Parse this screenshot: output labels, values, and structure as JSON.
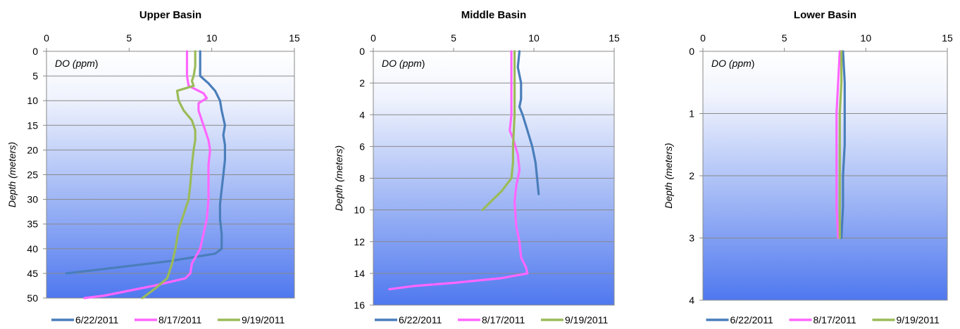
{
  "chart_data": [
    {
      "type": "line",
      "title": "Upper Basin",
      "xlabel": "DO",
      "xlabel_unit": "ppm",
      "ylabel": "Depth (meters)",
      "xlim": [
        0,
        15
      ],
      "ylim": [
        0,
        50
      ],
      "x_ticks": [
        0,
        5,
        10,
        15
      ],
      "y_ticks": [
        0,
        5,
        10,
        15,
        20,
        25,
        30,
        35,
        40,
        45,
        50
      ],
      "x_axis_position": "top",
      "y_inverted": true,
      "grid": "horizontal",
      "legend": "bottom",
      "series": [
        {
          "name": "6/22/2011",
          "color": "#4a7ebb",
          "points": [
            [
              9.3,
              0
            ],
            [
              9.3,
              3
            ],
            [
              9.3,
              5
            ],
            [
              9.8,
              6.5
            ],
            [
              10.2,
              8
            ],
            [
              10.5,
              10
            ],
            [
              10.6,
              12
            ],
            [
              10.8,
              15
            ],
            [
              10.7,
              17
            ],
            [
              10.8,
              19
            ],
            [
              10.8,
              22
            ],
            [
              10.7,
              25
            ],
            [
              10.6,
              28
            ],
            [
              10.5,
              31
            ],
            [
              10.5,
              34
            ],
            [
              10.6,
              37
            ],
            [
              10.6,
              40
            ],
            [
              10.2,
              41
            ],
            [
              7.5,
              42.5
            ],
            [
              5,
              43.5
            ],
            [
              2.5,
              44.5
            ],
            [
              1.2,
              45
            ]
          ]
        },
        {
          "name": "8/17/2011",
          "color": "#ff66ff",
          "points": [
            [
              8.5,
              0
            ],
            [
              8.5,
              3
            ],
            [
              8.5,
              5
            ],
            [
              8.6,
              7
            ],
            [
              9.5,
              8.5
            ],
            [
              9.7,
              9.5
            ],
            [
              9.2,
              10.5
            ],
            [
              9.2,
              12
            ],
            [
              9.5,
              15
            ],
            [
              9.8,
              18
            ],
            [
              9.9,
              20
            ],
            [
              9.8,
              23
            ],
            [
              9.8,
              27
            ],
            [
              9.8,
              30
            ],
            [
              9.7,
              34
            ],
            [
              9.5,
              37
            ],
            [
              9.3,
              40
            ],
            [
              8.8,
              43
            ],
            [
              8.7,
              45
            ],
            [
              8.4,
              46
            ],
            [
              6.5,
              47.5
            ],
            [
              5,
              48.5
            ],
            [
              3.5,
              49.5
            ],
            [
              2.3,
              50
            ]
          ]
        },
        {
          "name": "9/19/2011",
          "color": "#9bbb59",
          "points": [
            [
              9.0,
              0
            ],
            [
              9.0,
              3
            ],
            [
              8.9,
              5
            ],
            [
              8.8,
              6
            ],
            [
              8.9,
              7
            ],
            [
              8.4,
              7.5
            ],
            [
              7.9,
              8
            ],
            [
              8.0,
              10
            ],
            [
              8.3,
              12
            ],
            [
              8.8,
              14
            ],
            [
              9.0,
              16
            ],
            [
              9.0,
              18
            ],
            [
              8.9,
              20
            ],
            [
              8.8,
              23
            ],
            [
              8.7,
              27
            ],
            [
              8.6,
              30
            ],
            [
              8.3,
              33
            ],
            [
              8.0,
              36
            ],
            [
              7.8,
              40
            ],
            [
              7.6,
              43
            ],
            [
              7.4,
              45
            ],
            [
              7.3,
              46
            ],
            [
              6.6,
              48
            ],
            [
              6.0,
              49.5
            ],
            [
              5.8,
              50
            ]
          ]
        }
      ]
    },
    {
      "type": "line",
      "title": "Middle Basin",
      "xlabel": "DO",
      "xlabel_unit": "ppm",
      "ylabel": "Depth (meters)",
      "xlim": [
        0,
        15
      ],
      "ylim": [
        0,
        16
      ],
      "x_ticks": [
        0,
        5,
        10,
        15
      ],
      "y_ticks": [
        0,
        2,
        4,
        6,
        8,
        10,
        12,
        14,
        16
      ],
      "x_axis_position": "top",
      "y_inverted": true,
      "grid": "horizontal",
      "legend": "bottom",
      "series": [
        {
          "name": "6/22/2011",
          "color": "#4a7ebb",
          "points": [
            [
              9.1,
              0
            ],
            [
              9.0,
              1
            ],
            [
              9.2,
              2
            ],
            [
              9.2,
              3
            ],
            [
              9.1,
              3.5
            ],
            [
              9.3,
              4
            ],
            [
              9.6,
              5
            ],
            [
              9.9,
              6
            ],
            [
              10.1,
              7
            ],
            [
              10.2,
              8
            ],
            [
              10.3,
              9
            ]
          ]
        },
        {
          "name": "8/17/2011",
          "color": "#ff66ff",
          "points": [
            [
              8.6,
              0
            ],
            [
              8.6,
              2
            ],
            [
              8.6,
              4
            ],
            [
              8.5,
              5
            ],
            [
              8.7,
              5.5
            ],
            [
              9.0,
              6.5
            ],
            [
              9.1,
              7.5
            ],
            [
              8.9,
              8.5
            ],
            [
              8.8,
              9.5
            ],
            [
              8.9,
              11
            ],
            [
              9.1,
              12
            ],
            [
              9.2,
              13
            ],
            [
              9.5,
              13.6
            ],
            [
              9.6,
              14
            ],
            [
              8.0,
              14.3
            ],
            [
              5.0,
              14.6
            ],
            [
              2.5,
              14.8
            ],
            [
              1.0,
              15
            ]
          ]
        },
        {
          "name": "9/19/2011",
          "color": "#9bbb59",
          "points": [
            [
              8.8,
              0
            ],
            [
              8.8,
              2
            ],
            [
              8.8,
              4
            ],
            [
              8.7,
              6
            ],
            [
              8.7,
              7
            ],
            [
              8.6,
              8
            ],
            [
              8.0,
              8.8
            ],
            [
              7.5,
              9.3
            ],
            [
              7.0,
              9.8
            ],
            [
              6.8,
              10
            ]
          ]
        }
      ]
    },
    {
      "type": "line",
      "title": "Lower Basin",
      "xlabel": "DO",
      "xlabel_unit": "ppm",
      "ylabel": "Depth (meters)",
      "xlim": [
        0,
        15
      ],
      "ylim": [
        0,
        4
      ],
      "x_ticks": [
        0,
        5,
        10,
        15
      ],
      "y_ticks": [
        0,
        1,
        2,
        3,
        4
      ],
      "x_axis_position": "top",
      "y_inverted": true,
      "grid": "horizontal",
      "legend": "bottom",
      "series": [
        {
          "name": "6/22/2011",
          "color": "#4a7ebb",
          "points": [
            [
              8.6,
              0
            ],
            [
              8.7,
              0.5
            ],
            [
              8.7,
              1
            ],
            [
              8.7,
              1.5
            ],
            [
              8.6,
              2
            ],
            [
              8.6,
              2.5
            ],
            [
              8.5,
              3
            ]
          ]
        },
        {
          "name": "8/17/2011",
          "color": "#ff66ff",
          "points": [
            [
              8.4,
              0
            ],
            [
              8.3,
              0.5
            ],
            [
              8.2,
              1
            ],
            [
              8.2,
              1.5
            ],
            [
              8.2,
              2
            ],
            [
              8.2,
              2.5
            ],
            [
              8.3,
              3
            ]
          ]
        },
        {
          "name": "9/19/2011",
          "color": "#9bbb59",
          "points": [
            [
              8.5,
              0
            ],
            [
              8.5,
              0.5
            ],
            [
              8.4,
              1
            ],
            [
              8.4,
              1.5
            ],
            [
              8.4,
              2
            ],
            [
              8.4,
              2.5
            ],
            [
              8.4,
              3
            ]
          ]
        }
      ]
    }
  ]
}
